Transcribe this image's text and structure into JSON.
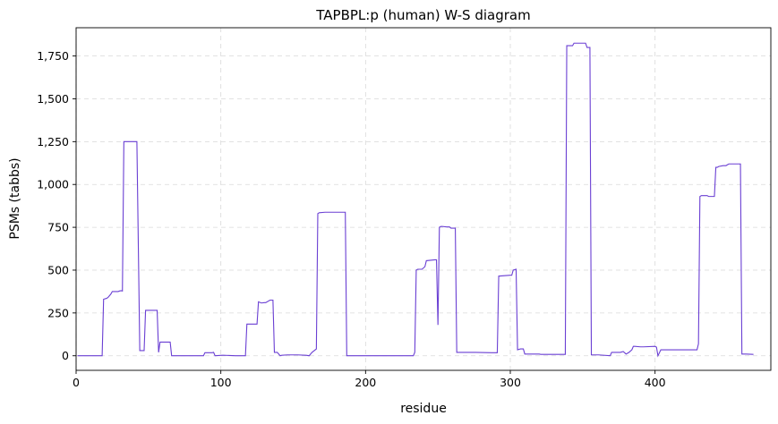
{
  "chart_data": {
    "type": "line",
    "title": "TAPBPL:p (human) W-S diagram",
    "xlabel": "residue",
    "ylabel": "PSMs (tabbs)",
    "xlim": [
      0,
      480
    ],
    "ylim": [
      -85,
      1915
    ],
    "xticks": [
      0,
      100,
      200,
      300,
      400
    ],
    "yticks": [
      0,
      250,
      500,
      750,
      1000,
      1250,
      1500,
      1750
    ],
    "ytick_labels": [
      "0",
      "250",
      "500",
      "750",
      "1,000",
      "1,250",
      "1,500",
      "1,750"
    ],
    "grid": true,
    "line_color": "#6a3fd3",
    "series": [
      {
        "x": [
          1,
          18,
          19,
          21,
          22,
          24,
          25,
          29,
          30,
          31,
          32,
          33,
          41,
          42,
          44,
          47,
          48,
          56,
          57,
          58,
          60,
          65,
          66,
          71,
          72,
          75,
          81,
          88,
          89,
          94,
          95,
          96,
          101,
          102,
          110,
          117,
          118,
          125,
          126,
          128,
          130,
          131,
          134,
          136,
          137,
          139,
          141,
          142,
          146,
          153,
          159,
          161,
          163,
          166,
          167,
          168,
          172,
          186,
          187,
          212,
          213,
          233,
          234,
          235,
          236,
          239,
          241,
          242,
          248,
          249,
          250,
          251,
          252,
          253,
          256,
          258,
          259,
          262,
          263,
          276,
          287,
          291,
          292,
          300,
          301,
          302,
          304,
          305,
          307,
          309,
          310,
          320,
          321,
          328,
          338,
          339,
          343,
          344,
          352,
          353,
          355,
          356,
          361,
          369,
          370,
          372,
          376,
          378,
          380,
          382,
          384,
          385,
          386,
          390,
          392,
          400,
          401,
          402,
          404,
          407,
          408,
          420,
          428,
          429,
          430,
          431,
          432,
          436,
          437,
          441,
          442,
          443,
          444,
          447,
          449,
          451,
          452,
          458,
          459,
          460,
          463,
          468
        ],
        "y": [
          0,
          0,
          330,
          335,
          340,
          360,
          375,
          375,
          378,
          380,
          378,
          1250,
          1250,
          1250,
          30,
          30,
          265,
          265,
          20,
          80,
          80,
          80,
          0,
          0,
          0,
          0,
          0,
          0,
          18,
          18,
          20,
          0,
          3,
          3,
          0,
          0,
          185,
          185,
          315,
          308,
          310,
          310,
          325,
          325,
          20,
          20,
          0,
          3,
          5,
          5,
          3,
          0,
          20,
          40,
          830,
          835,
          838,
          838,
          0,
          0,
          0,
          0,
          20,
          500,
          505,
          505,
          520,
          555,
          560,
          560,
          180,
          750,
          755,
          755,
          752,
          752,
          745,
          745,
          20,
          20,
          18,
          18,
          465,
          470,
          470,
          500,
          505,
          35,
          40,
          40,
          10,
          10,
          8,
          8,
          8,
          1810,
          1810,
          1825,
          1825,
          1800,
          1800,
          5,
          5,
          0,
          20,
          20,
          20,
          25,
          10,
          20,
          35,
          55,
          55,
          52,
          52,
          55,
          50,
          0,
          35,
          35,
          35,
          35,
          35,
          35,
          70,
          930,
          935,
          935,
          930,
          930,
          1100,
          1100,
          1105,
          1110,
          1110,
          1120,
          1120,
          1120,
          1120,
          10,
          10,
          8
        ]
      }
    ]
  }
}
